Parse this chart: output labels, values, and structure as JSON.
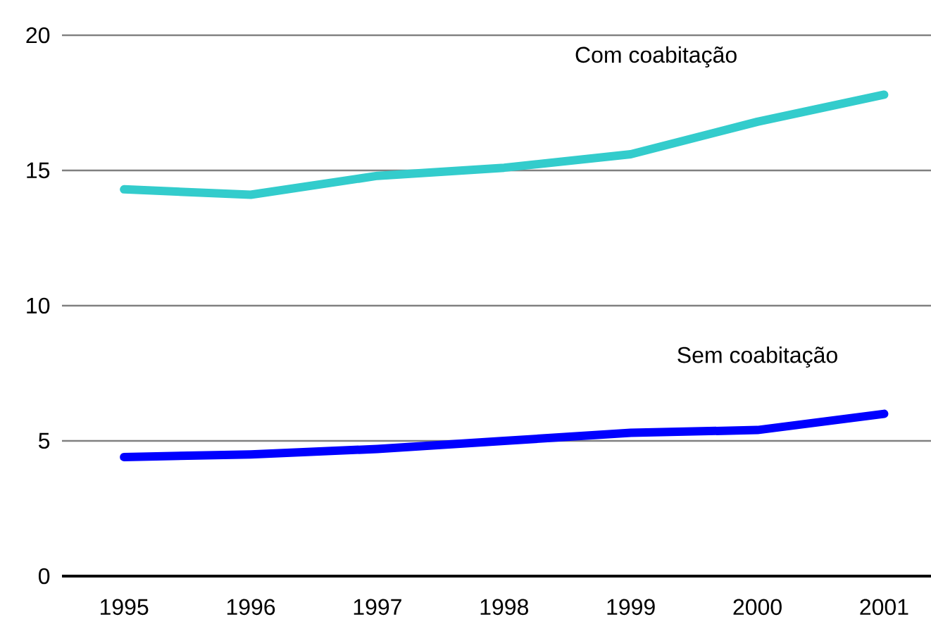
{
  "chart_data": {
    "type": "line",
    "categories": [
      "1995",
      "1996",
      "1997",
      "1998",
      "1999",
      "2000",
      "2001"
    ],
    "series": [
      {
        "name": "Com coabitação",
        "color": "#33cccc",
        "values": [
          14.3,
          14.1,
          14.8,
          15.1,
          15.6,
          16.8,
          17.8
        ]
      },
      {
        "name": "Sem coabitação",
        "color": "#0000ff",
        "values": [
          4.4,
          4.5,
          4.7,
          5.0,
          5.3,
          5.4,
          6.0
        ]
      }
    ],
    "ylim": [
      0,
      20
    ],
    "yticks": [
      0,
      5,
      10,
      15,
      20
    ],
    "grid": "y",
    "marker": "none",
    "line_style": "solid"
  }
}
